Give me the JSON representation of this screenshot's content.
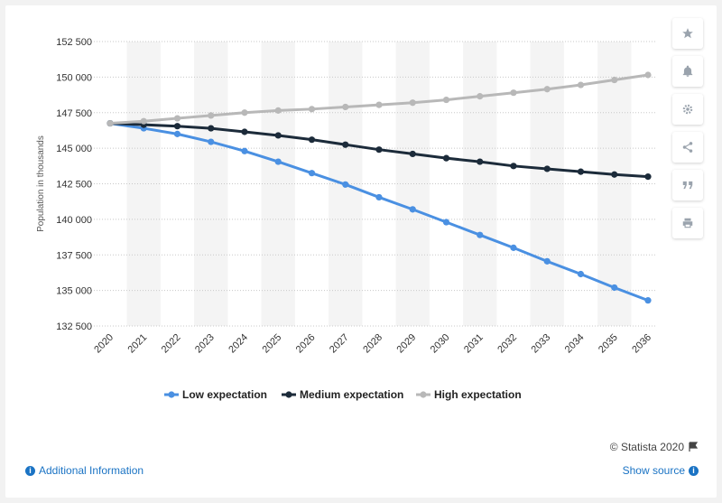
{
  "chart_data": {
    "type": "line",
    "title": "",
    "xlabel": "",
    "ylabel": "Population in thousands",
    "ylim": [
      132500,
      152500
    ],
    "yticks": [
      132500,
      135000,
      137500,
      140000,
      142500,
      145000,
      147500,
      150000,
      152500
    ],
    "ytick_labels": [
      "132 500",
      "135 000",
      "137 500",
      "140 000",
      "142 500",
      "145 000",
      "147 500",
      "150 000",
      "152 500"
    ],
    "categories": [
      "2020",
      "2021",
      "2022",
      "2023",
      "2024",
      "2025",
      "2026",
      "2027",
      "2028",
      "2029",
      "2030",
      "2031",
      "2032",
      "2033",
      "2034",
      "2035",
      "2036"
    ],
    "grid": true,
    "legend_position": "bottom",
    "series": [
      {
        "name": "Low expectation",
        "color": "#4a90e2",
        "values": [
          146750,
          146400,
          146000,
          145450,
          144800,
          144050,
          143250,
          142450,
          141550,
          140700,
          139800,
          138900,
          138000,
          137050,
          136150,
          135200,
          134300
        ]
      },
      {
        "name": "Medium expectation",
        "color": "#1c2b3a",
        "values": [
          146750,
          146650,
          146550,
          146400,
          146150,
          145900,
          145600,
          145250,
          144900,
          144600,
          144300,
          144050,
          143750,
          143550,
          143350,
          143150,
          143000
        ]
      },
      {
        "name": "High expectation",
        "color": "#b8b8b8",
        "values": [
          146750,
          146900,
          147100,
          147300,
          147500,
          147650,
          147750,
          147900,
          148050,
          148200,
          148400,
          148650,
          148900,
          149150,
          149450,
          149800,
          150150
        ]
      }
    ]
  },
  "footer": {
    "copyright": "© Statista 2020",
    "additional_info": "Additional Information",
    "show_source": "Show source"
  },
  "toolbar": {
    "icons": [
      "star-icon",
      "bell-icon",
      "gear-icon",
      "share-icon",
      "quote-icon",
      "print-icon"
    ]
  }
}
